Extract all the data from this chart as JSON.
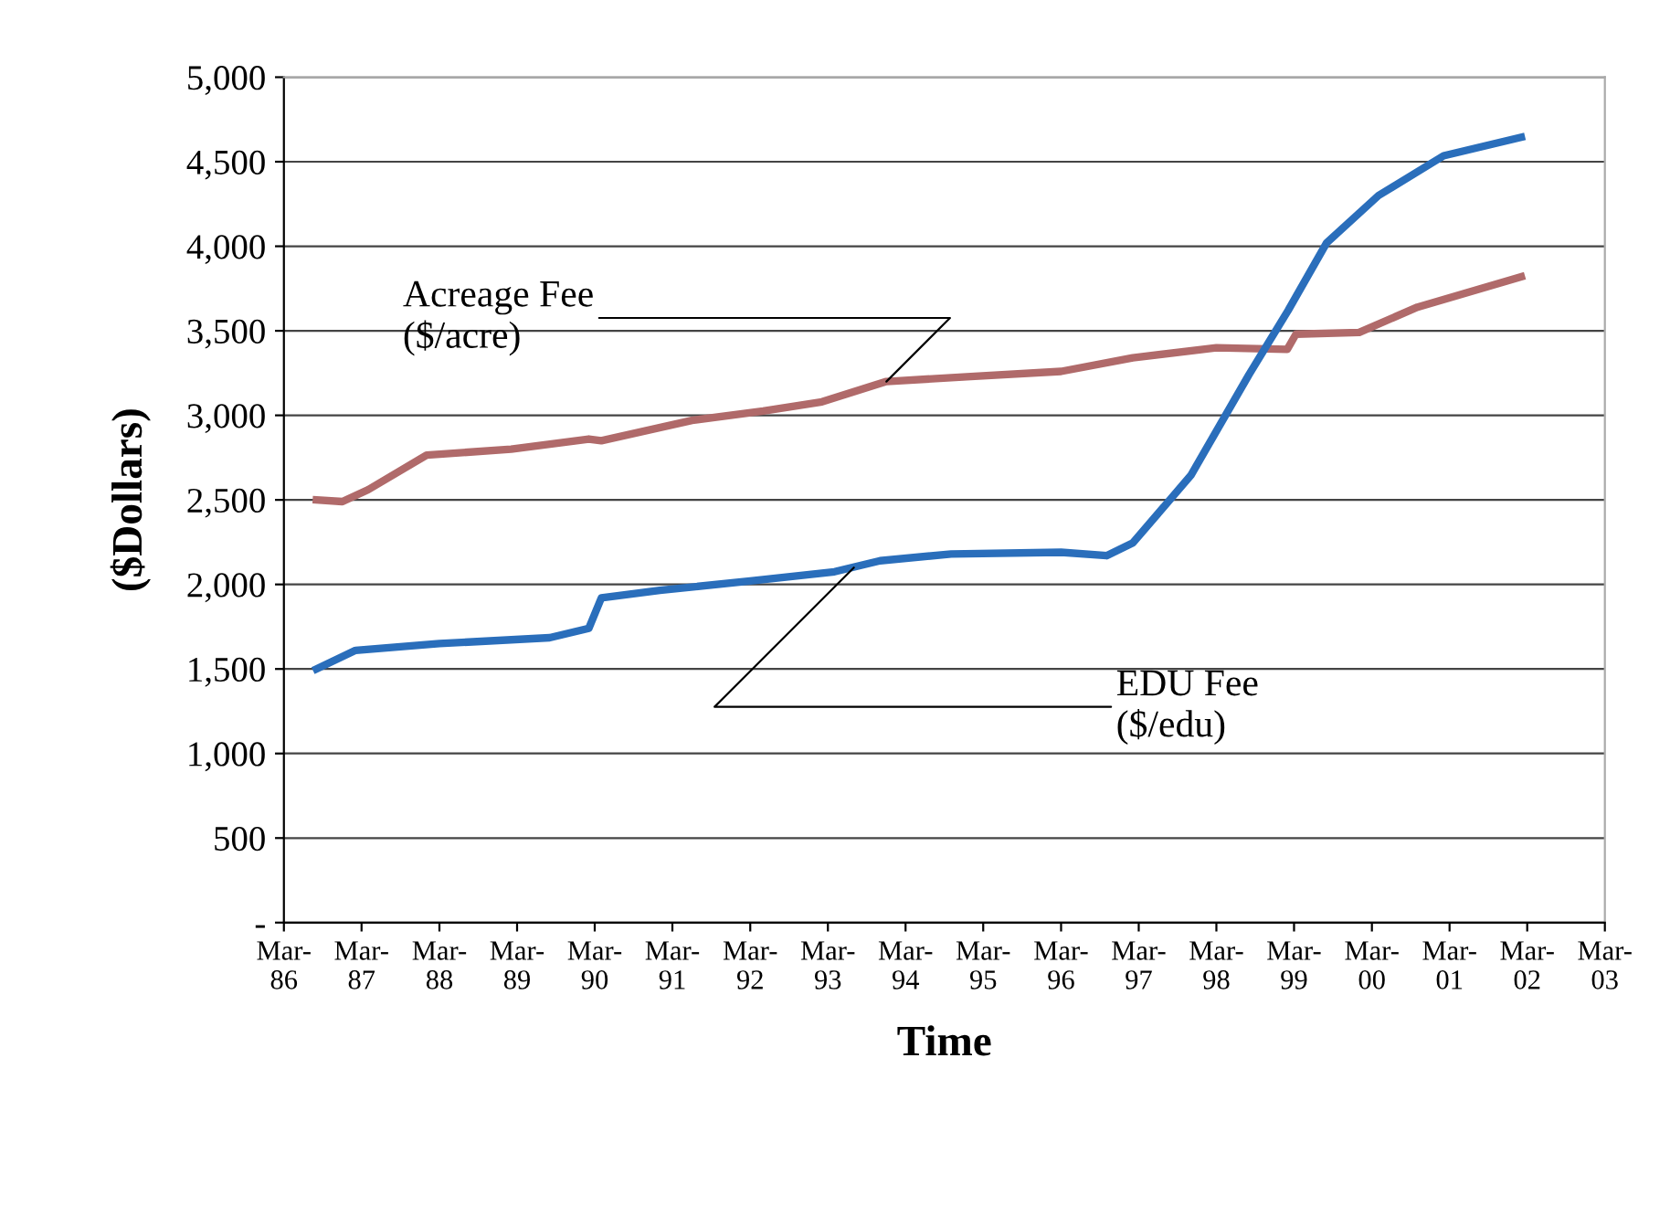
{
  "chart_data": {
    "type": "line",
    "xlabel": "Time",
    "ylabel": "($Dollars)",
    "xlim": [
      "1986-03",
      "2003-03"
    ],
    "ylim": [
      0,
      5000
    ],
    "xticks": [
      {
        "value": "1986-03",
        "label": "Mar-\n86"
      },
      {
        "value": "1987-03",
        "label": "Mar-\n87"
      },
      {
        "value": "1988-03",
        "label": "Mar-\n88"
      },
      {
        "value": "1989-03",
        "label": "Mar-\n89"
      },
      {
        "value": "1990-03",
        "label": "Mar-\n90"
      },
      {
        "value": "1991-03",
        "label": "Mar-\n91"
      },
      {
        "value": "1992-03",
        "label": "Mar-\n92"
      },
      {
        "value": "1993-03",
        "label": "Mar-\n93"
      },
      {
        "value": "1994-03",
        "label": "Mar-\n94"
      },
      {
        "value": "1995-03",
        "label": "Mar-\n95"
      },
      {
        "value": "1996-03",
        "label": "Mar-\n96"
      },
      {
        "value": "1997-03",
        "label": "Mar-\n97"
      },
      {
        "value": "1998-03",
        "label": "Mar-\n98"
      },
      {
        "value": "1999-03",
        "label": "Mar-\n99"
      },
      {
        "value": "2000-03",
        "label": "Mar-\n00"
      },
      {
        "value": "2001-03",
        "label": "Mar-\n01"
      },
      {
        "value": "2002-03",
        "label": "Mar-\n02"
      },
      {
        "value": "2003-03",
        "label": "Mar-\n03"
      }
    ],
    "yticks": [
      {
        "value": 0,
        "label": "-"
      },
      500,
      {
        "value": 1000,
        "label": "1,000"
      },
      {
        "value": 1500,
        "label": "1,500"
      },
      {
        "value": 2000,
        "label": "2,000"
      },
      {
        "value": 2500,
        "label": "2,500"
      },
      {
        "value": 3000,
        "label": "3,000"
      },
      {
        "value": 3500,
        "label": "3,500"
      },
      {
        "value": 4000,
        "label": "4,000"
      },
      {
        "value": 4500,
        "label": "4,500"
      },
      {
        "value": 5000,
        "label": "5,000"
      }
    ],
    "grid": "y",
    "legend": false,
    "marker": "none",
    "line_style": "solid",
    "series": [
      {
        "color": "#b06a6a",
        "x": [
          "1986-08",
          "1986-12",
          "1987-04",
          "1988-01",
          "1989-02",
          "1990-02",
          "1990-04",
          "1991-06",
          "1992-05",
          "1993-02",
          "1993-12",
          "1995-01",
          "1996-03",
          "1997-02",
          "1998-03",
          "1999-01-28",
          "1999-03-10",
          "2000-01",
          "2000-10",
          "2002-02"
        ],
        "values": [
          2500,
          2490,
          2560,
          2765,
          2800,
          2860,
          2850,
          2970,
          3025,
          3080,
          3200,
          3230,
          3260,
          3340,
          3400,
          3390,
          3480,
          3490,
          3640,
          3820
        ]
      },
      {
        "color": "#2a6ebb",
        "x": [
          "1986-08",
          "1987-02",
          "1988-03",
          "1989-08",
          "1990-02",
          "1990-04",
          "1991-01",
          "1992-03",
          "1993-04",
          "1993-11",
          "1994-10",
          "1996-03",
          "1996-10",
          "1997-02",
          "1997-11",
          "1998-08",
          "1999-02",
          "1999-08",
          "2000-04",
          "2001-02",
          "2002-02"
        ],
        "values": [
          1500,
          1610,
          1650,
          1685,
          1740,
          1920,
          1965,
          2020,
          2075,
          2140,
          2180,
          2190,
          2170,
          2245,
          2645,
          3240,
          3620,
          4020,
          4300,
          4535,
          4645
        ]
      }
    ],
    "annotations": [
      {
        "text": "Acreage Fee\n($/acre)",
        "x": "1993-12",
        "y": 3200
      },
      {
        "text": "EDU Fee\n($/edu)",
        "x": "1993-07",
        "y": 2100
      }
    ]
  }
}
